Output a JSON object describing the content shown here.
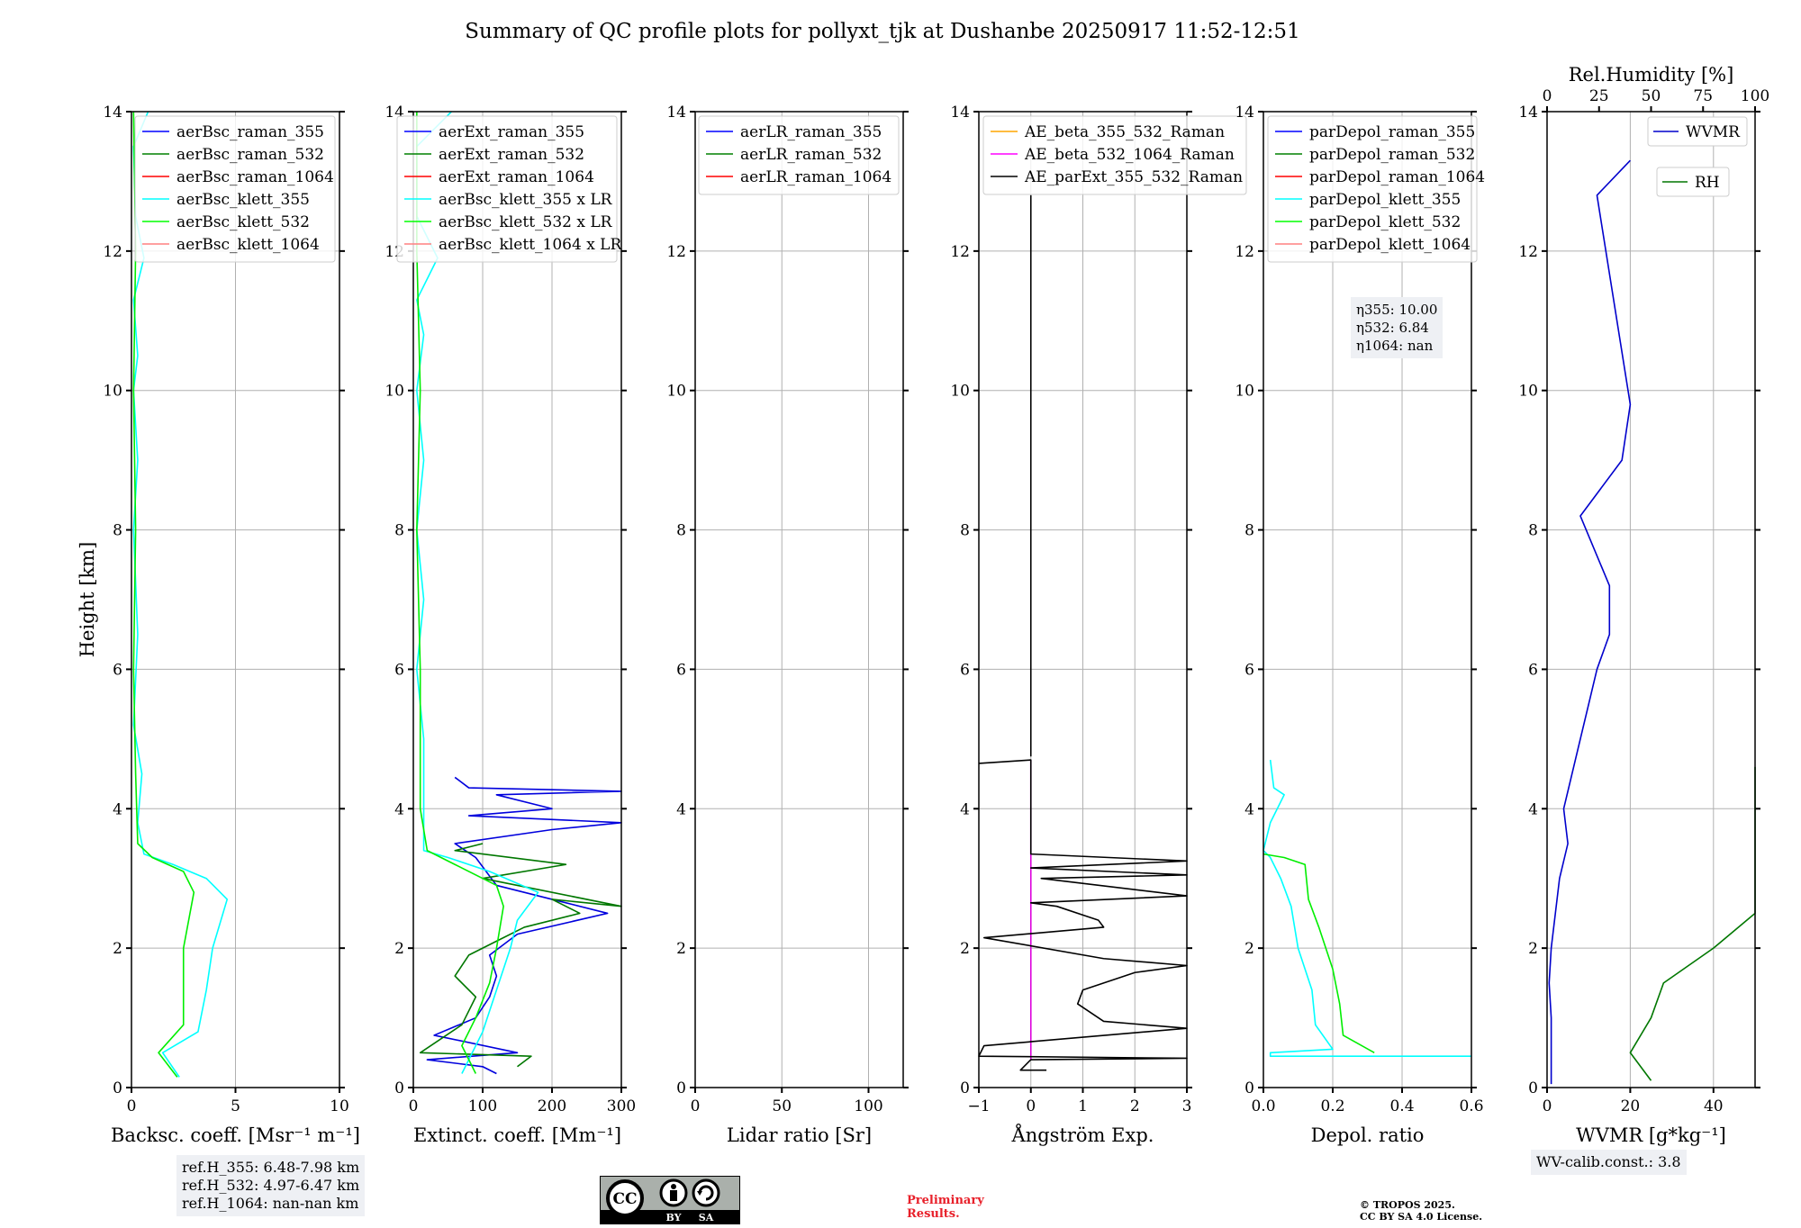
{
  "figure": {
    "title": "Summary of QC profile plots for pollyxt_tjk at Dushanbe 20250917 11:52-12:51",
    "ylabel": "Height [km]",
    "notes": {
      "refh": [
        "ref.H_355: 6.48-7.98 km",
        "ref.H_532: 4.97-6.47 km",
        "ref.H_1064: nan-nan km"
      ],
      "eta": [
        "η355: 10.00",
        "η532: 6.84",
        "η1064: nan"
      ],
      "wv_calib": "WV-calib.const.: 3.8",
      "preliminary": [
        "Preliminary",
        "Results."
      ],
      "copyright": [
        "© TROPOS 2025.",
        "CC BY SA 4.0 License."
      ],
      "license_badge": [
        "CC",
        "BY",
        "SA"
      ]
    }
  },
  "chart_data": [
    {
      "type": "line",
      "xlabel": "Backsc. coeff. [Msr⁻¹ m⁻¹]",
      "xlim": [
        0,
        10
      ],
      "xticks": [
        "0",
        "5",
        "10"
      ],
      "ylim": [
        0,
        14
      ],
      "yticks": [
        "0",
        "2",
        "4",
        "6",
        "8",
        "10",
        "12",
        "14"
      ],
      "grid": true,
      "legend_position": "top-right",
      "legend": [
        "aerBsc_raman_355",
        "aerBsc_raman_532",
        "aerBsc_raman_1064",
        "aerBsc_klett_355",
        "aerBsc_klett_532",
        "aerBsc_klett_1064"
      ],
      "series": [
        {
          "name": "aerBsc_klett_355",
          "color": "#00ffff",
          "points": [
            [
              2.3,
              0.15
            ],
            [
              1.5,
              0.5
            ],
            [
              3.2,
              0.8
            ],
            [
              3.6,
              1.4
            ],
            [
              3.9,
              2.0
            ],
            [
              4.6,
              2.7
            ],
            [
              3.6,
              3.0
            ],
            [
              2.0,
              3.2
            ],
            [
              0.6,
              3.35
            ],
            [
              0.3,
              3.8
            ],
            [
              0.5,
              4.5
            ],
            [
              0.1,
              5.2
            ],
            [
              0.3,
              6.5
            ],
            [
              0.1,
              8
            ],
            [
              0.3,
              9
            ],
            [
              0.1,
              10
            ],
            [
              0.3,
              10.5
            ],
            [
              0.1,
              11.3
            ],
            [
              0.6,
              11.9
            ],
            [
              0.2,
              12.5
            ],
            [
              0.1,
              13.5
            ],
            [
              0.8,
              14
            ]
          ]
        },
        {
          "name": "aerBsc_klett_532",
          "color": "#00ee00",
          "points": [
            [
              2.2,
              0.15
            ],
            [
              1.3,
              0.5
            ],
            [
              2.5,
              0.9
            ],
            [
              2.5,
              2.0
            ],
            [
              3.0,
              2.8
            ],
            [
              2.5,
              3.1
            ],
            [
              1.0,
              3.3
            ],
            [
              0.3,
              3.5
            ],
            [
              0.2,
              4.5
            ],
            [
              0.1,
              6
            ],
            [
              0.2,
              8
            ],
            [
              0.1,
              10
            ],
            [
              0.2,
              12
            ],
            [
              0.1,
              14
            ]
          ]
        }
      ]
    },
    {
      "type": "line",
      "xlabel": "Extinct. coeff. [Mm⁻¹]",
      "xlim": [
        0,
        300
      ],
      "xticks": [
        "0",
        "100",
        "200",
        "300"
      ],
      "ylim": [
        0,
        14
      ],
      "yticks": [
        "0",
        "2",
        "4",
        "6",
        "8",
        "10",
        "12",
        "14"
      ],
      "grid": true,
      "legend_position": "top-right",
      "legend": [
        "aerExt_raman_355",
        "aerExt_raman_532",
        "aerExt_raman_1064",
        "aerBsc_klett_355 x LR",
        "aerBsc_klett_532 x LR",
        "aerBsc_klett_1064 x LR"
      ],
      "series": [
        {
          "name": "aerExt_raman_355",
          "color": "#0000dd",
          "points": [
            [
              120,
              0.2
            ],
            [
              100,
              0.3
            ],
            [
              20,
              0.4
            ],
            [
              150,
              0.5
            ],
            [
              30,
              0.75
            ],
            [
              90,
              1.0
            ],
            [
              110,
              1.3
            ],
            [
              120,
              1.6
            ],
            [
              110,
              1.9
            ],
            [
              150,
              2.2
            ],
            [
              280,
              2.5
            ],
            [
              200,
              2.7
            ],
            [
              120,
              2.9
            ],
            [
              90,
              3.3
            ],
            [
              60,
              3.5
            ],
            [
              200,
              3.7
            ],
            [
              300,
              3.8
            ],
            [
              80,
              3.9
            ],
            [
              200,
              4.0
            ],
            [
              120,
              4.2
            ],
            [
              300,
              4.25
            ],
            [
              80,
              4.3
            ],
            [
              60,
              4.45
            ]
          ]
        },
        {
          "name": "aerExt_raman_532",
          "color": "#007700",
          "points": [
            [
              150,
              0.3
            ],
            [
              170,
              0.45
            ],
            [
              10,
              0.5
            ],
            [
              70,
              0.9
            ],
            [
              90,
              1.3
            ],
            [
              60,
              1.6
            ],
            [
              80,
              1.9
            ],
            [
              120,
              2.1
            ],
            [
              160,
              2.3
            ],
            [
              240,
              2.5
            ],
            [
              200,
              2.7
            ],
            [
              300,
              2.6
            ],
            [
              150,
              2.9
            ],
            [
              100,
              3.0
            ],
            [
              220,
              3.2
            ],
            [
              60,
              3.4
            ],
            [
              100,
              3.5
            ]
          ]
        },
        {
          "name": "aerBsc_klett_355 x LR",
          "color": "#00ffff",
          "points": [
            [
              70,
              0.2
            ],
            [
              100,
              0.8
            ],
            [
              120,
              1.4
            ],
            [
              140,
              2.0
            ],
            [
              150,
              2.4
            ],
            [
              180,
              2.8
            ],
            [
              110,
              3.1
            ],
            [
              50,
              3.3
            ],
            [
              15,
              3.4
            ],
            [
              15,
              4.0
            ],
            [
              15,
              5.0
            ],
            [
              5,
              6
            ],
            [
              15,
              7
            ],
            [
              5,
              8
            ],
            [
              15,
              9
            ],
            [
              5,
              10
            ],
            [
              15,
              10.8
            ],
            [
              5,
              11.3
            ],
            [
              35,
              11.9
            ],
            [
              5,
              12.5
            ],
            [
              5,
              13.5
            ],
            [
              55,
              14
            ]
          ]
        },
        {
          "name": "aerBsc_klett_532 x LR",
          "color": "#00ee00",
          "points": [
            [
              90,
              0.2
            ],
            [
              70,
              0.6
            ],
            [
              90,
              1.0
            ],
            [
              110,
              1.5
            ],
            [
              120,
              2.0
            ],
            [
              130,
              2.6
            ],
            [
              120,
              2.9
            ],
            [
              60,
              3.2
            ],
            [
              20,
              3.4
            ],
            [
              10,
              4
            ],
            [
              10,
              6
            ],
            [
              5,
              8
            ],
            [
              10,
              10
            ],
            [
              5,
              12
            ],
            [
              5,
              14
            ]
          ]
        }
      ]
    },
    {
      "type": "line",
      "xlabel": "Lidar ratio [Sr]",
      "xlim": [
        0,
        120
      ],
      "xticks": [
        "0",
        "50",
        "100"
      ],
      "ylim": [
        0,
        14
      ],
      "yticks": [
        "0",
        "2",
        "4",
        "6",
        "8",
        "10",
        "12",
        "14"
      ],
      "grid": true,
      "legend_position": "top-right",
      "legend": [
        "aerLR_raman_355",
        "aerLR_raman_532",
        "aerLR_raman_1064"
      ],
      "series": []
    },
    {
      "type": "line",
      "xlabel": "Ångström Exp.",
      "xlim": [
        -1,
        3
      ],
      "xticks": [
        "−1",
        "0",
        "1",
        "2",
        "3"
      ],
      "ylim": [
        0,
        14
      ],
      "yticks": [
        "0",
        "2",
        "4",
        "6",
        "8",
        "10",
        "12",
        "14"
      ],
      "grid": true,
      "legend_position": "top-left",
      "legend": [
        "AE_beta_355_532_Raman",
        "AE_beta_532_1064_Raman",
        "AE_parExt_355_532_Raman"
      ],
      "series": [
        {
          "name": "AE_beta_532_1064_Raman",
          "color": "#dd00dd",
          "points": [
            [
              0,
              0.4
            ],
            [
              0,
              4.7
            ]
          ]
        },
        {
          "name": "AE_parExt_355_532_Raman",
          "color": "#000000",
          "points": [
            [
              0.3,
              0.25
            ],
            [
              -0.2,
              0.25
            ],
            [
              0,
              0.4
            ],
            [
              3,
              0.42
            ],
            [
              -1,
              0.45
            ],
            [
              -0.9,
              0.6
            ],
            [
              3,
              0.85
            ],
            [
              1.4,
              0.95
            ],
            [
              0.9,
              1.2
            ],
            [
              1.0,
              1.4
            ],
            [
              1.4,
              1.5
            ],
            [
              2.0,
              1.65
            ],
            [
              3,
              1.75
            ],
            [
              1.4,
              1.85
            ],
            [
              -0.9,
              2.15
            ],
            [
              1.4,
              2.3
            ],
            [
              1.3,
              2.4
            ],
            [
              0.5,
              2.6
            ],
            [
              0,
              2.65
            ],
            [
              3,
              2.75
            ],
            [
              0.2,
              3.0
            ],
            [
              3,
              3.05
            ],
            [
              0,
              3.15
            ],
            [
              3,
              3.25
            ],
            [
              0,
              3.35
            ],
            [
              0,
              4.7
            ],
            [
              -1,
              4.65
            ]
          ]
        },
        {
          "name": "AE_parExt_355_532_Raman_upper",
          "color": "#000000",
          "points": [
            [
              0,
              4.75
            ],
            [
              0,
              12.8
            ]
          ]
        }
      ]
    },
    {
      "type": "line",
      "xlabel": "Depol. ratio",
      "xlim": [
        0,
        0.6
      ],
      "xticks": [
        "0.0",
        "0.2",
        "0.4",
        "0.6"
      ],
      "ylim": [
        0,
        14
      ],
      "yticks": [
        "0",
        "2",
        "4",
        "6",
        "8",
        "10",
        "12",
        "14"
      ],
      "grid": true,
      "legend_position": "top-left",
      "legend": [
        "parDepol_raman_355",
        "parDepol_raman_532",
        "parDepol_raman_1064",
        "parDepol_klett_355",
        "parDepol_klett_532",
        "parDepol_klett_1064"
      ],
      "series": [
        {
          "name": "parDepol_klett_355",
          "color": "#00ffff",
          "points": [
            [
              0.6,
              0.45
            ],
            [
              0.02,
              0.45
            ],
            [
              0.02,
              0.5
            ],
            [
              0.2,
              0.55
            ],
            [
              0.15,
              0.9
            ],
            [
              0.14,
              1.4
            ],
            [
              0.1,
              2.0
            ],
            [
              0.08,
              2.6
            ],
            [
              0.05,
              3.0
            ],
            [
              0.02,
              3.3
            ],
            [
              0,
              3.4
            ],
            [
              0.02,
              3.8
            ],
            [
              0.06,
              4.2
            ],
            [
              0.03,
              4.3
            ],
            [
              0.02,
              4.7
            ]
          ]
        },
        {
          "name": "parDepol_klett_532",
          "color": "#00ee00",
          "points": [
            [
              0.32,
              0.5
            ],
            [
              0.23,
              0.75
            ],
            [
              0.22,
              1.2
            ],
            [
              0.2,
              1.7
            ],
            [
              0.18,
              2.0
            ],
            [
              0.16,
              2.3
            ],
            [
              0.13,
              2.7
            ],
            [
              0.12,
              3.2
            ],
            [
              0.06,
              3.3
            ],
            [
              0,
              3.35
            ]
          ]
        }
      ]
    },
    {
      "type": "line",
      "xlabel": "WVMR [g*kg⁻¹]",
      "xlim": [
        0,
        50
      ],
      "xticks": [
        "0",
        "20",
        "40"
      ],
      "x2label": "Rel.Humidity [%]",
      "x2lim": [
        0,
        100
      ],
      "x2ticks": [
        "0",
        "25",
        "50",
        "75",
        "100"
      ],
      "ylim": [
        0,
        14
      ],
      "yticks": [
        "0",
        "2",
        "4",
        "6",
        "8",
        "10",
        "12",
        "14"
      ],
      "grid": true,
      "legend_position": "top-right",
      "legend": [
        "WVMR",
        "RH"
      ],
      "series": [
        {
          "name": "WVMR",
          "color": "#0000cc",
          "points": [
            [
              1,
              0.05
            ],
            [
              1,
              1.0
            ],
            [
              0.5,
              1.5
            ],
            [
              1,
              2.0
            ],
            [
              2,
              2.5
            ],
            [
              3,
              3.0
            ],
            [
              5,
              3.5
            ],
            [
              4,
              4.0
            ],
            [
              6,
              4.5
            ],
            [
              8,
              5.0
            ],
            [
              10,
              5.5
            ],
            [
              12,
              6.0
            ],
            [
              15,
              6.5
            ],
            [
              15,
              7.2
            ],
            [
              8,
              8.2
            ],
            [
              18,
              9.0
            ],
            [
              20,
              9.8
            ],
            [
              12,
              12.8
            ],
            [
              20,
              13.3
            ]
          ]
        },
        {
          "name": "RH",
          "color": "#007700",
          "points": [
            [
              25,
              0.1
            ],
            [
              20,
              0.5
            ],
            [
              25,
              1.0
            ],
            [
              28,
              1.5
            ],
            [
              40,
              2.0
            ],
            [
              55,
              2.5
            ],
            [
              75,
              3.0
            ],
            [
              60,
              3.5
            ],
            [
              85,
              4.0
            ],
            [
              100,
              4.6
            ]
          ]
        }
      ]
    }
  ]
}
